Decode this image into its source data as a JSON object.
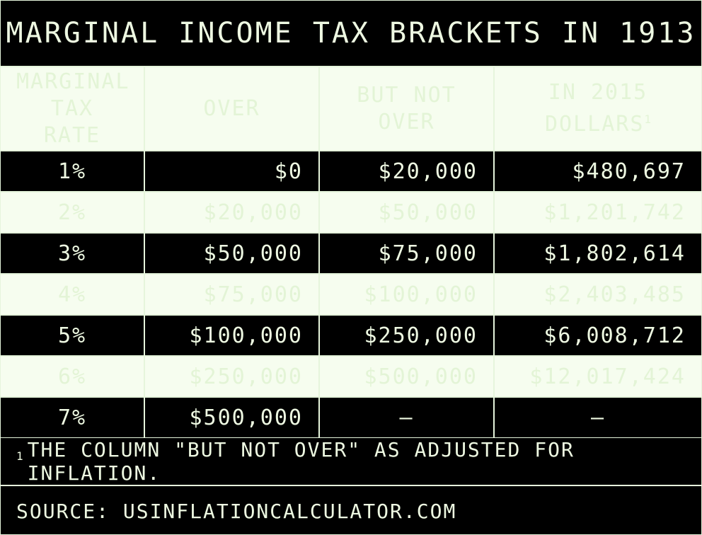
{
  "title": "MARGINAL INCOME TAX BRACKETS IN 1913",
  "colors": {
    "dark": "#000000",
    "light": "#f6fdef",
    "text_on_dark": "#eef9e2",
    "text_on_light": "#e3f4d6",
    "border": "#e6f5dc"
  },
  "chart_data": {
    "type": "table",
    "title": "MARGINAL INCOME TAX BRACKETS IN 1913",
    "columns": [
      {
        "line1": "MARGINAL",
        "line2": "TAX RATE",
        "sup": ""
      },
      {
        "line1": "OVER",
        "line2": "",
        "sup": ""
      },
      {
        "line1": "BUT NOT",
        "line2": "OVER",
        "sup": ""
      },
      {
        "line1": "IN 2015",
        "line2": "DOLLARS",
        "sup": "1"
      }
    ],
    "rows": [
      [
        "1%",
        "$0",
        "$20,000",
        "$480,697"
      ],
      [
        "2%",
        "$20,000",
        "$50,000",
        "$1,201,742"
      ],
      [
        "3%",
        "$50,000",
        "$75,000",
        "$1,802,614"
      ],
      [
        "4%",
        "$75,000",
        "$100,000",
        "$2,403,485"
      ],
      [
        "5%",
        "$100,000",
        "$250,000",
        "$6,008,712"
      ],
      [
        "6%",
        "$250,000",
        "$500,000",
        "$12,017,424"
      ],
      [
        "7%",
        "$500,000",
        "–",
        "–"
      ]
    ]
  },
  "footnote": {
    "mark": "1",
    "text": "THE COLUMN \"BUT NOT OVER\" AS ADJUSTED FOR INFLATION."
  },
  "source": "SOURCE: USINFLATIONCALCULATOR.COM"
}
